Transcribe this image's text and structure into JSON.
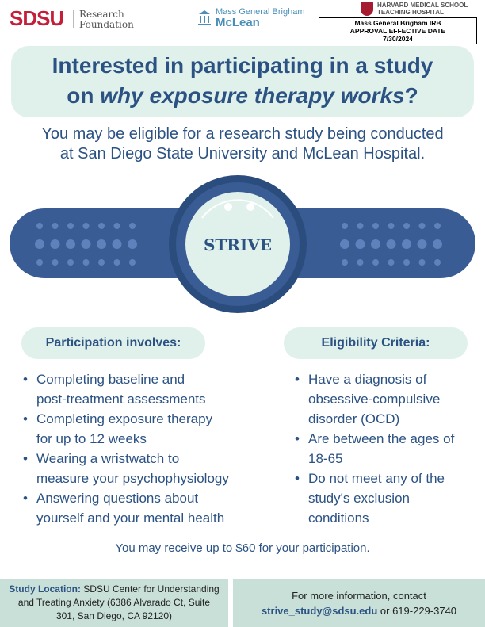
{
  "logos": {
    "sdsu": "SDSU",
    "sdsu_sub": [
      "Research",
      "Foundation"
    ],
    "mgb": "Mass General Brigham",
    "mclean": "McLean",
    "hms": [
      "HARVARD MEDICAL SCHOOL",
      "TEACHING HOSPITAL"
    ]
  },
  "irb_stamp": {
    "line1": "Mass General Brigham IRB",
    "line2": "APPROVAL EFFECTIVE DATE",
    "date": "7/30/2024"
  },
  "headline": {
    "line1": "Interested in participating in a study",
    "line2_pre": "on ",
    "line2_em": "why exposure therapy works",
    "line2_post": "?"
  },
  "subheadline": {
    "line1": "You may be eligible for a research study being conducted",
    "line2": "at San Diego State University and McLean Hospital."
  },
  "watch": {
    "label": "STRIVE",
    "band_color": "#3a5c95",
    "face_color": "#dff1ea"
  },
  "participation": {
    "heading": "Participation involves:",
    "items": [
      [
        "Completing baseline and",
        "post-treatment assessments"
      ],
      [
        "Completing exposure therapy",
        "for up to 12 weeks"
      ],
      [
        "Wearing a wristwatch to",
        "measure your psychophysiology"
      ],
      [
        "Answering questions about",
        "yourself and your mental health"
      ]
    ]
  },
  "eligibility": {
    "heading": "Eligibility Criteria:",
    "items": [
      [
        "Have a diagnosis of",
        "obsessive-compulsive",
        "disorder (OCD)"
      ],
      [
        "Are between the ages of",
        "18-65"
      ],
      [
        "Do not meet any of the",
        "study's exclusion",
        "conditions"
      ]
    ]
  },
  "compensation": "You may receive up to $60 for your participation.",
  "footer": {
    "location_label": "Study Location:",
    "location_lines": [
      " SDSU Center for Understanding",
      "and Treating Anxiety (6386 Alvarado Ct, Suite",
      "301, San Diego, CA 92120)"
    ],
    "contact_line": "For more information, contact",
    "email": "strive_study@sdsu.edu",
    "phone": " or 619-229-3740"
  },
  "colors": {
    "primary": "#2b5283",
    "mint": "#dff1ea",
    "footer_bg": "#c9e0d8",
    "sdsu_red": "#c41e3a"
  }
}
